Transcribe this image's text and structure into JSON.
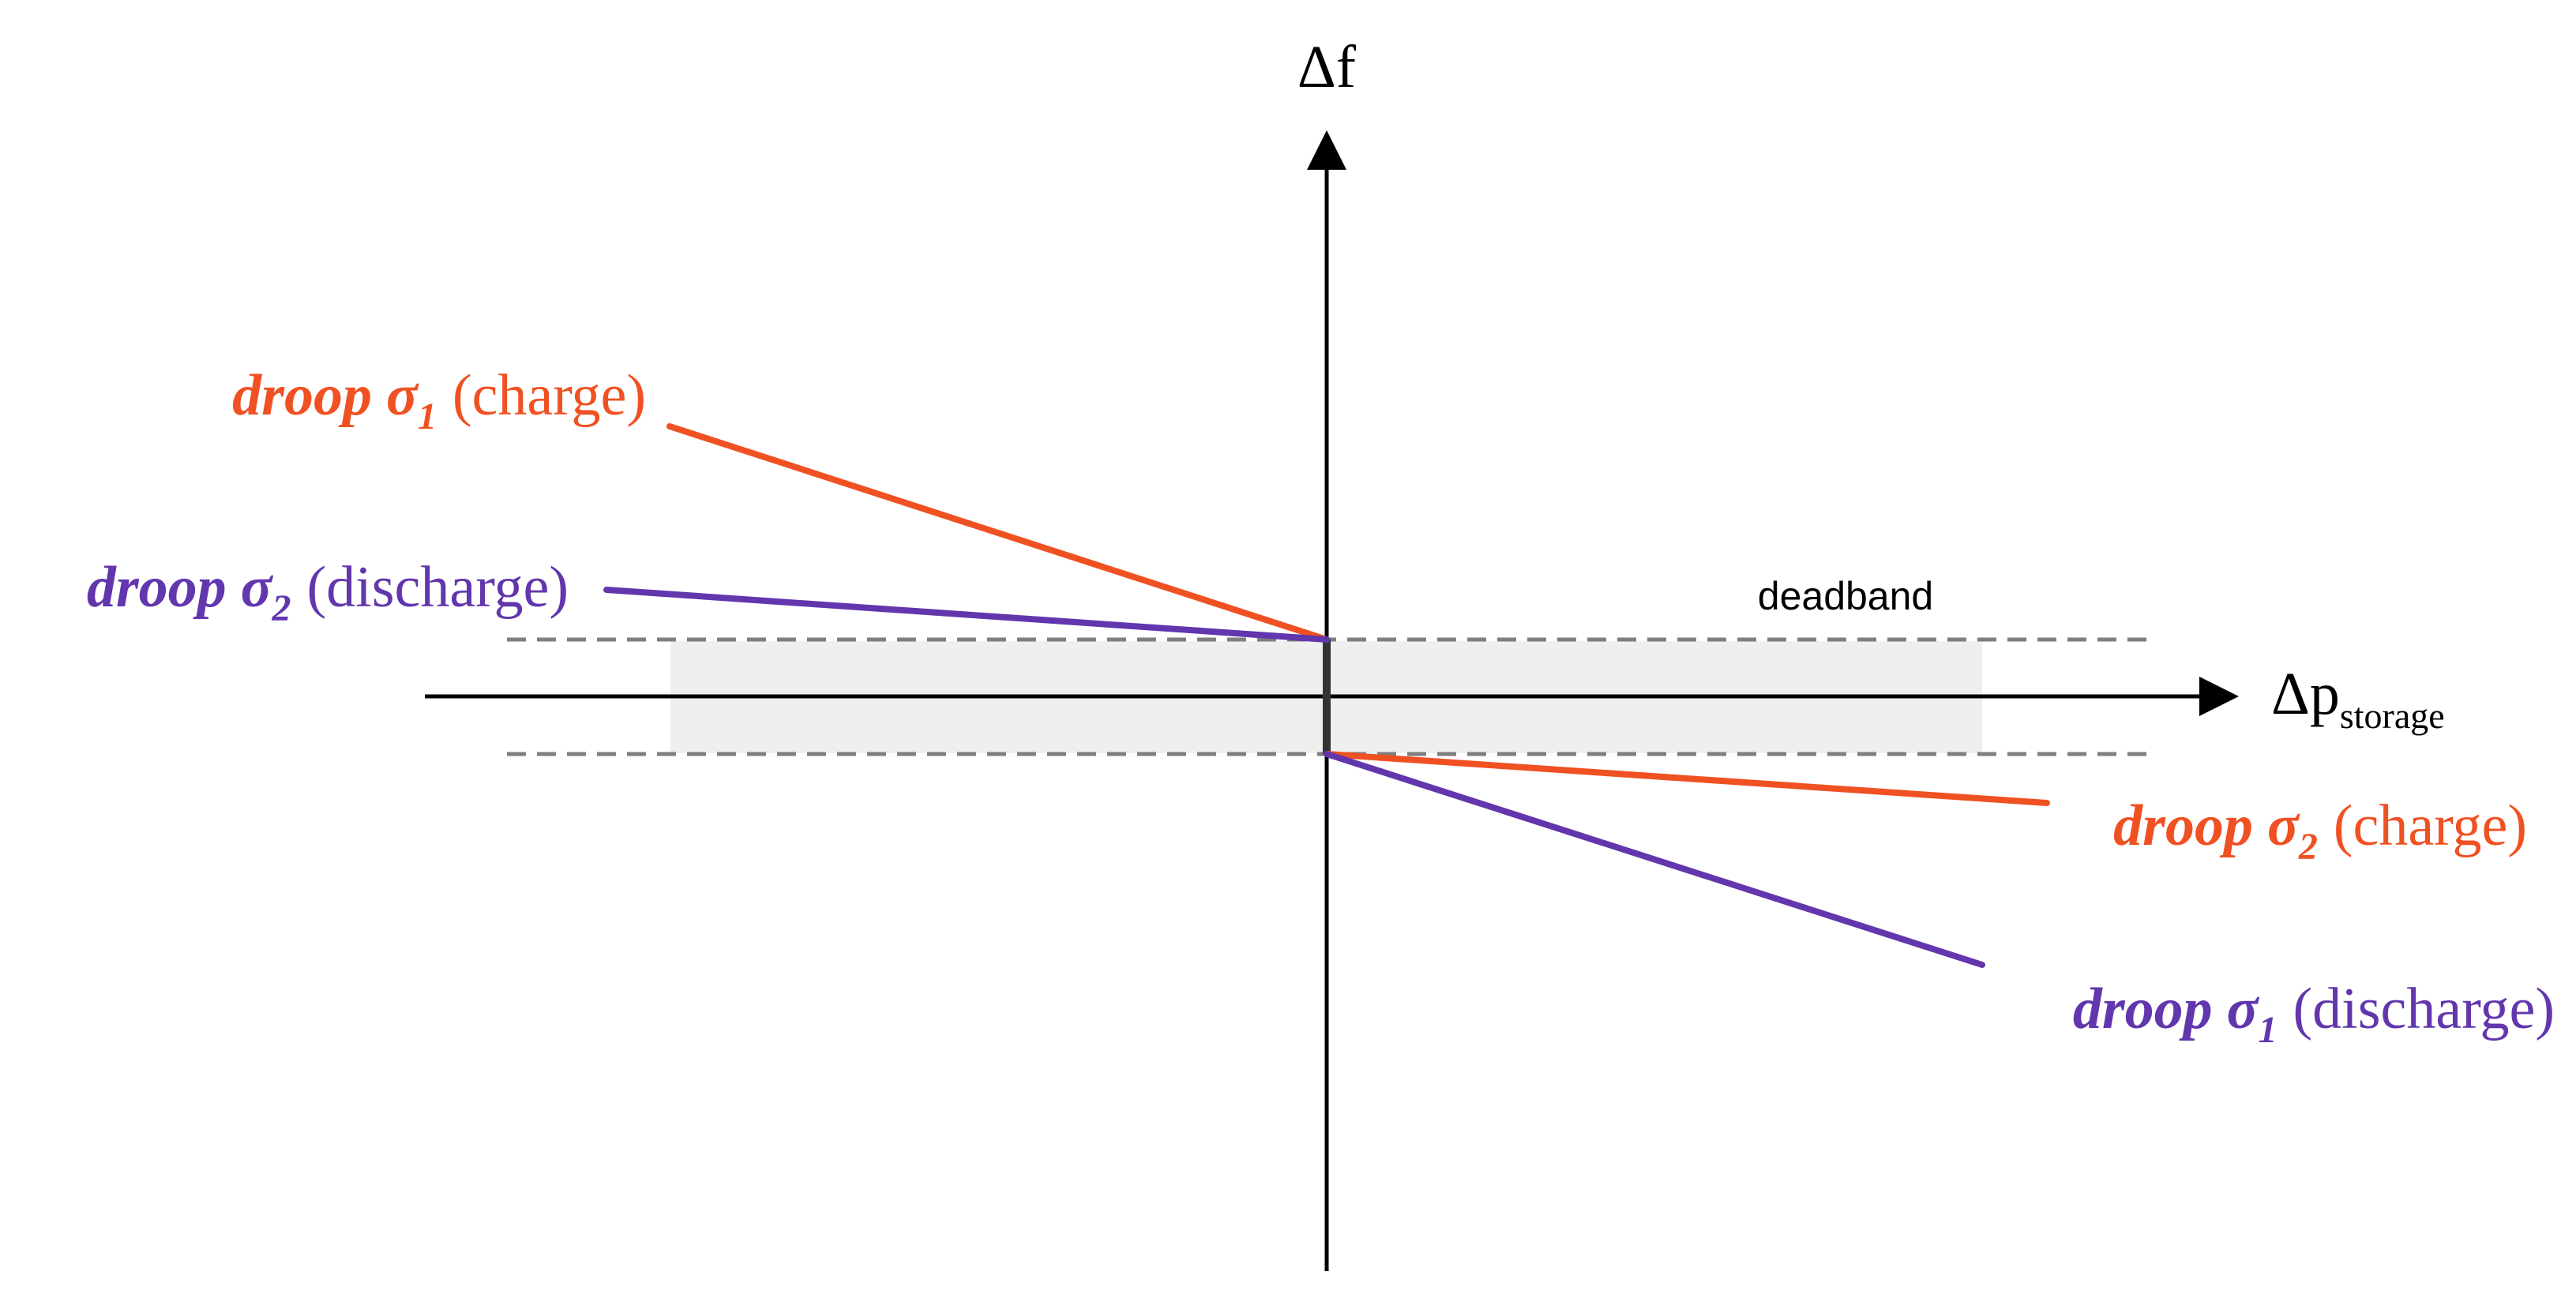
{
  "colors": {
    "charge": "#f05122",
    "discharge": "#6236ad",
    "axis": "#000000",
    "deadband_fill": "#efefef",
    "deadband_line": "#7f7f7f"
  },
  "axes": {
    "y_label": "Δf",
    "x_label_main": "Δp",
    "x_label_sub": "storage"
  },
  "deadband": {
    "label": "deadband"
  },
  "labels": {
    "droop1_charge": {
      "word": "droop",
      "sigma": "σ",
      "sub": "1",
      "mode": "(charge)"
    },
    "droop2_discharge": {
      "word": "droop",
      "sigma": "σ",
      "sub": "2",
      "mode": "(discharge)"
    },
    "droop2_charge": {
      "word": "droop",
      "sigma": "σ",
      "sub": "2",
      "mode": "(charge)"
    },
    "droop1_discharge": {
      "word": "droop",
      "sigma": "σ",
      "sub": "1",
      "mode": "(discharge)"
    }
  }
}
